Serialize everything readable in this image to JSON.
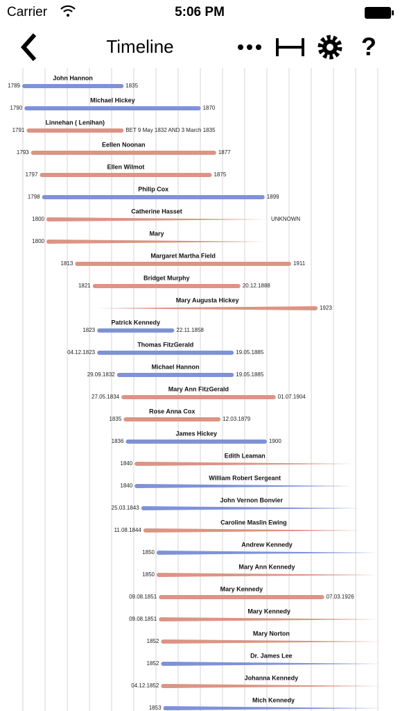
{
  "status_bar": {
    "carrier": "Carrier",
    "time": "5:06 PM"
  },
  "nav_bar": {
    "title": "Timeline"
  },
  "entries": [
    {
      "name": "John Hannon",
      "start": "1789",
      "end": "1835",
      "color": "#7f92d8"
    },
    {
      "name": "Michael Hickey",
      "start": "1790",
      "end": "1870",
      "color": "#7f92d8"
    },
    {
      "name": "Linnehan ( Lenihan)",
      "start": "1791",
      "end": "BET 9 May 1832 AND 3 March 1835",
      "color": "#dc9484"
    },
    {
      "name": "Eellen Noonan",
      "start": "1793",
      "end": "1877",
      "color": "#dc9484"
    },
    {
      "name": "Ellen Wilmot",
      "start": "1797",
      "end": "1875",
      "color": "#dc9484"
    },
    {
      "name": "Philip Cox",
      "start": "1798",
      "end": "1899",
      "color": "#7f92d8"
    },
    {
      "name": "Catherine Hasset",
      "start": "1800",
      "end": "UNKNOWN",
      "color": "#dc9484"
    },
    {
      "name": "Mary",
      "start": "1800",
      "end": null,
      "color": "#dc9484"
    },
    {
      "name": "Margaret Martha Field",
      "start": "1813",
      "end": "1911",
      "color": "#dc9484"
    },
    {
      "name": "Bridget Murphy",
      "start": "1821",
      "end": "20.12.1888",
      "color": "#dc9484"
    },
    {
      "name": "Mary Augusta Hickey",
      "start": null,
      "end": "1923",
      "color": "#dc9484"
    },
    {
      "name": "Patrick Kennedy",
      "start": "1823",
      "end": "22.11.1858",
      "color": "#7f92d8"
    },
    {
      "name": "Thomas FitzGerald",
      "start": "04.12.1823",
      "end": "19.05.1885",
      "color": "#7f92d8"
    },
    {
      "name": "Michael Hannon",
      "start": "29.09.1832",
      "end": "19.05.1885",
      "color": "#7f92d8"
    },
    {
      "name": "Mary Ann FitzGerald",
      "start": "27.05.1834",
      "end": "01.07.1904",
      "color": "#dc9484"
    },
    {
      "name": "Rose Anna Cox",
      "start": "1835",
      "end": "12.03.1879",
      "color": "#dc9484"
    },
    {
      "name": "James Hickey",
      "start": "1836",
      "end": "1900",
      "color": "#7f92d8"
    },
    {
      "name": "Edith Leaman",
      "start": "1840",
      "end": null,
      "color": "#dc9484"
    },
    {
      "name": "William Robert Sergeant",
      "start": "1840",
      "end": null,
      "color": "#7f92d8"
    },
    {
      "name": "John Vernon Bonvier",
      "start": "25.03.1843",
      "end": null,
      "color": "#7f92d8"
    },
    {
      "name": "Caroline Maslin Ewing",
      "start": "11.08.1844",
      "end": null,
      "color": "#dc9484"
    },
    {
      "name": "Andrew Kennedy",
      "start": "1850",
      "end": null,
      "color": "#7f92d8"
    },
    {
      "name": "Mary Ann Kennedy",
      "start": "1850",
      "end": null,
      "color": "#dc9484"
    },
    {
      "name": "Mary Kennedy",
      "start": "09.08.1851",
      "end": "07.03.1926",
      "color": "#dc9484"
    },
    {
      "name": "Mary Kennedy",
      "start": "09.08.1851",
      "end": null,
      "color": "#dc9484"
    },
    {
      "name": "Mary Norton",
      "start": "1852",
      "end": null,
      "color": "#dc9484"
    },
    {
      "name": "Dr. James Lee",
      "start": "1852",
      "end": null,
      "color": "#7f92d8"
    },
    {
      "name": "Johanna Kennedy",
      "start": "04.12.1852",
      "end": null,
      "color": "#dc9484"
    },
    {
      "name": "Mich Kennedy",
      "start": "1853",
      "end": null,
      "color": "#7f92d8"
    }
  ]
}
